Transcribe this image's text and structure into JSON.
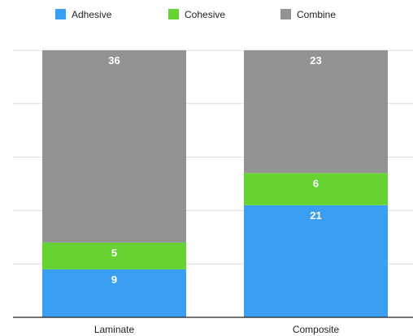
{
  "chart_data": {
    "type": "bar",
    "stacked": true,
    "categories": [
      "Laminate",
      "Composite"
    ],
    "series": [
      {
        "name": "Adhesive",
        "values": [
          9,
          21
        ],
        "color": "#3a9ff2"
      },
      {
        "name": "Cohesive",
        "values": [
          5,
          6
        ],
        "color": "#66d333"
      },
      {
        "name": "Combine",
        "values": [
          36,
          23
        ],
        "color": "#939393"
      }
    ],
    "ylim": [
      0,
      50
    ],
    "grid": true,
    "legend_position": "top"
  }
}
